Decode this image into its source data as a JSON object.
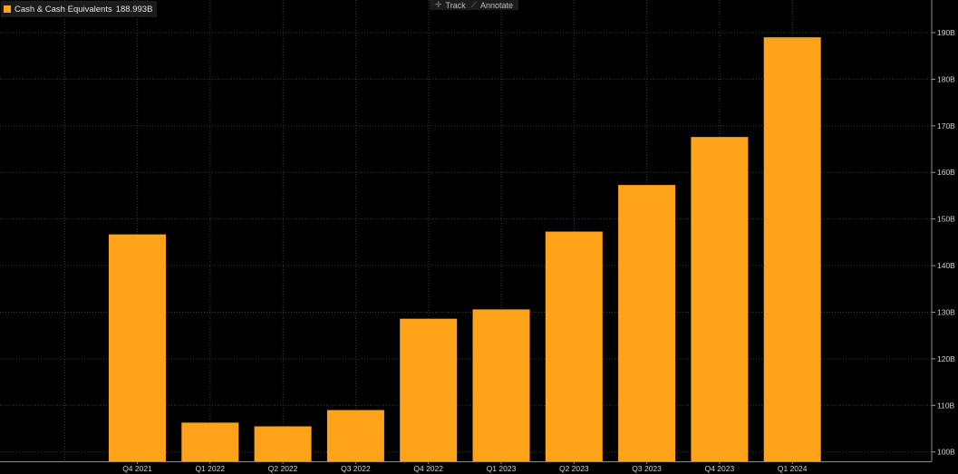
{
  "legend": {
    "series_label": "Cash & Cash Equivalents",
    "value": "188.993B"
  },
  "toolbar": {
    "track_label": "Track",
    "annotate_label": "Annotate",
    "track_icon": "crosshair-icon",
    "annotate_icon": "pencil-icon"
  },
  "colors": {
    "background": "#000000",
    "bar": "#ffa31a",
    "grid": "#3a3a3a",
    "axis_text": "#d2d2d2"
  },
  "chart_data": {
    "type": "bar",
    "categories": [
      "Q4 2021",
      "Q1 2022",
      "Q2 2022",
      "Q3 2022",
      "Q4 2022",
      "Q1 2023",
      "Q2 2023",
      "Q3 2023",
      "Q4 2023",
      "Q1 2024"
    ],
    "series": [
      {
        "name": "Cash & Cash Equivalents",
        "values": [
          146.7,
          106.3,
          105.5,
          109.0,
          128.6,
          130.6,
          147.3,
          157.3,
          167.6,
          188.993
        ]
      }
    ],
    "yticks": [
      100,
      110,
      120,
      130,
      140,
      150,
      160,
      170,
      180,
      190
    ],
    "ytick_labels": [
      "100B",
      "110B",
      "120B",
      "130B",
      "140B",
      "150B",
      "160B",
      "170B",
      "180B",
      "190B"
    ],
    "ylim": [
      98,
      197
    ],
    "grid": true,
    "y_axis_side": "right",
    "legend_position": "top-left"
  }
}
